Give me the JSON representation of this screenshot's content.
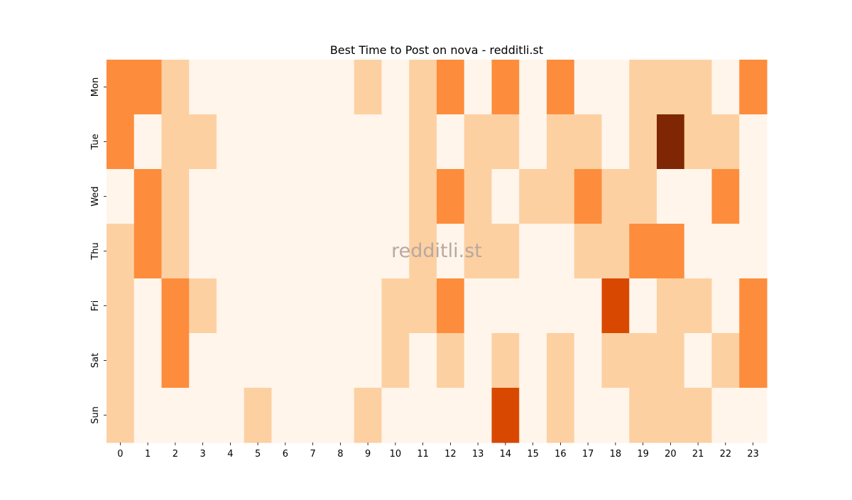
{
  "chart_data": {
    "type": "heatmap",
    "title": "Best Time to Post on nova - redditli.st",
    "xlabel": "",
    "ylabel": "",
    "x_categories": [
      "0",
      "1",
      "2",
      "3",
      "4",
      "5",
      "6",
      "7",
      "8",
      "9",
      "10",
      "11",
      "12",
      "13",
      "14",
      "15",
      "16",
      "17",
      "18",
      "19",
      "20",
      "21",
      "22",
      "23"
    ],
    "y_categories": [
      "Mon",
      "Tue",
      "Wed",
      "Thu",
      "Fri",
      "Sat",
      "Sun"
    ],
    "values": [
      [
        2,
        2,
        1,
        0,
        0,
        0,
        0,
        0,
        0,
        1,
        0,
        1,
        2,
        0,
        2,
        0,
        2,
        0,
        0,
        1,
        1,
        1,
        0,
        2
      ],
      [
        2,
        0,
        1,
        1,
        0,
        0,
        0,
        0,
        0,
        0,
        0,
        1,
        0,
        1,
        1,
        0,
        1,
        1,
        0,
        1,
        4,
        1,
        1,
        0
      ],
      [
        0,
        2,
        1,
        0,
        0,
        0,
        0,
        0,
        0,
        0,
        0,
        1,
        2,
        1,
        0,
        1,
        1,
        2,
        1,
        1,
        0,
        0,
        2,
        0
      ],
      [
        1,
        2,
        1,
        0,
        0,
        0,
        0,
        0,
        0,
        0,
        0,
        1,
        0,
        1,
        1,
        0,
        0,
        1,
        1,
        2,
        2,
        0,
        0,
        0
      ],
      [
        1,
        0,
        2,
        1,
        0,
        0,
        0,
        0,
        0,
        0,
        1,
        1,
        2,
        0,
        0,
        0,
        0,
        0,
        3,
        0,
        1,
        1,
        0,
        2
      ],
      [
        1,
        0,
        2,
        0,
        0,
        0,
        0,
        0,
        0,
        0,
        1,
        0,
        1,
        0,
        1,
        0,
        1,
        0,
        1,
        1,
        1,
        0,
        1,
        2
      ],
      [
        1,
        0,
        0,
        0,
        0,
        1,
        0,
        0,
        0,
        1,
        0,
        0,
        0,
        0,
        3,
        0,
        1,
        0,
        0,
        1,
        1,
        1,
        0,
        0
      ]
    ],
    "value_range": [
      0,
      4
    ],
    "colormap": [
      "#fff5eb",
      "#fdd0a2",
      "#fd8d3c",
      "#d94801",
      "#7f2704"
    ],
    "colorbar": false,
    "grid": false,
    "watermark": "redditli.st"
  }
}
